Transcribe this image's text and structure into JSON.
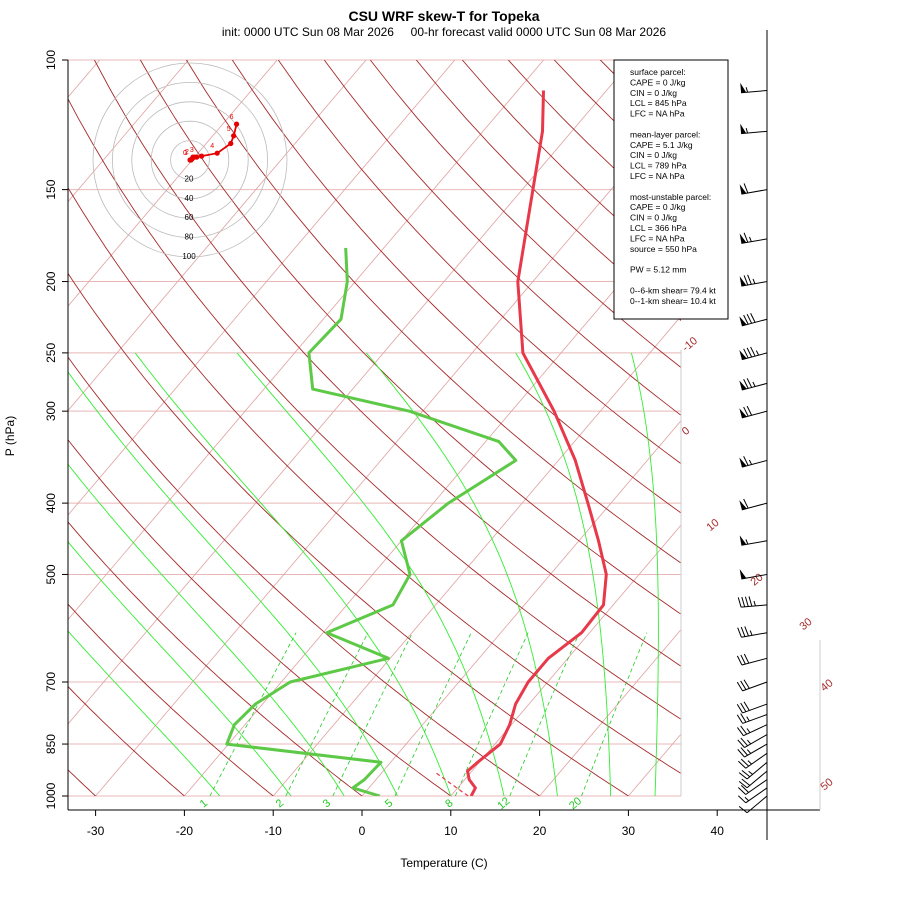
{
  "chart_data": {
    "type": "line",
    "title": "CSU WRF skew-T for Topeka",
    "subtitle": "init: 0000 UTC Sun 08 Mar 2026     00-hr forecast valid 0000 UTC Sun 08 Mar 2026",
    "xlabel": "Temperature (C)",
    "ylabel": "P (hPa)",
    "xlim_at_1000hPa": [
      -33,
      43
    ],
    "ylim_hPa": [
      100,
      1000
    ],
    "y_scale": "log",
    "x_ticks": [
      "-30",
      "-20",
      "-10",
      "0",
      "10",
      "20",
      "30",
      "40"
    ],
    "y_ticks": [
      "100",
      "150",
      "200",
      "250",
      "300",
      "400",
      "500",
      "700",
      "850",
      "1000"
    ],
    "isotherm_labels": [
      "-10",
      "0",
      "10",
      "20",
      "30",
      "40",
      "50"
    ],
    "mixing_ratio_labels": [
      "1",
      "2",
      "3",
      "5",
      "8",
      "12",
      "20"
    ],
    "series": [
      {
        "name": "",
        "color": "#e8394a",
        "values": [
          [
            1000,
            12.3
          ],
          [
            975,
            12.0
          ],
          [
            950,
            10.5
          ],
          [
            925,
            9.5
          ],
          [
            900,
            9.8
          ],
          [
            850,
            10.6
          ],
          [
            800,
            9.8
          ],
          [
            750,
            8.5
          ],
          [
            700,
            7.8
          ],
          [
            650,
            7.8
          ],
          [
            600,
            9.1
          ],
          [
            550,
            8.9
          ],
          [
            500,
            6.3
          ],
          [
            450,
            2.2
          ],
          [
            400,
            -2.6
          ],
          [
            350,
            -8.1
          ],
          [
            300,
            -15.2
          ],
          [
            250,
            -24.3
          ],
          [
            200,
            -31.7
          ],
          [
            150,
            -38.8
          ],
          [
            125,
            -43.3
          ],
          [
            110,
            -47.1
          ]
        ]
      },
      {
        "name": "",
        "color": "#5dc947",
        "values": [
          [
            1000,
            2.0
          ],
          [
            975,
            -1.8
          ],
          [
            950,
            -1.3
          ],
          [
            925,
            -1.2
          ],
          [
            900,
            -1.1
          ],
          [
            850,
            -20.2
          ],
          [
            800,
            -21.2
          ],
          [
            750,
            -20.8
          ],
          [
            700,
            -19.0
          ],
          [
            650,
            -10.2
          ],
          [
            600,
            -19.6
          ],
          [
            550,
            -14.8
          ],
          [
            500,
            -15.8
          ],
          [
            450,
            -20.0
          ],
          [
            400,
            -18.3
          ],
          [
            350,
            -14.8
          ],
          [
            330,
            -18.5
          ],
          [
            300,
            -31.5
          ],
          [
            280,
            -44.5
          ],
          [
            250,
            -48.4
          ],
          [
            225,
            -48.0
          ],
          [
            200,
            -50.9
          ],
          [
            180,
            -54.3
          ]
        ]
      }
    ],
    "hodograph": {
      "ring_labels": [
        "20",
        "40",
        "60",
        "80",
        "100"
      ],
      "height_labels": [
        "0",
        "1",
        "2",
        "3",
        "4",
        "5",
        "6"
      ],
      "points_kt": [
        [
          0,
          0
        ],
        [
          1,
          0
        ],
        [
          2,
          1
        ],
        [
          3,
          3
        ],
        [
          5,
          3
        ],
        [
          7,
          3
        ],
        [
          12,
          4
        ],
        [
          28,
          7
        ],
        [
          42,
          17
        ],
        [
          45,
          25
        ],
        [
          48,
          37
        ]
      ],
      "color": "#e60000"
    },
    "wind_barbs_kt": [
      [
        1000,
        230,
        10
      ],
      [
        975,
        235,
        15
      ],
      [
        950,
        235,
        20
      ],
      [
        925,
        230,
        20
      ],
      [
        900,
        230,
        25
      ],
      [
        875,
        235,
        25
      ],
      [
        850,
        240,
        25
      ],
      [
        825,
        240,
        25
      ],
      [
        800,
        245,
        25
      ],
      [
        775,
        250,
        25
      ],
      [
        750,
        250,
        30
      ],
      [
        700,
        250,
        30
      ],
      [
        650,
        255,
        30
      ],
      [
        600,
        260,
        35
      ],
      [
        550,
        265,
        45
      ],
      [
        500,
        260,
        50
      ],
      [
        450,
        260,
        55
      ],
      [
        400,
        255,
        60
      ],
      [
        350,
        255,
        65
      ],
      [
        300,
        255,
        70
      ],
      [
        275,
        255,
        75
      ],
      [
        250,
        255,
        85
      ],
      [
        225,
        255,
        80
      ],
      [
        200,
        260,
        75
      ],
      [
        175,
        260,
        65
      ],
      [
        150,
        260,
        60
      ],
      [
        125,
        265,
        55
      ],
      [
        110,
        265,
        55
      ]
    ],
    "grid": true,
    "legend_box_position": "top-right"
  },
  "info_box": {
    "lines": [
      "surface parcel:",
      "CAPE = 0 J/kg",
      "CIN = 0 J/kg",
      "LCL = 845 hPa",
      "LFC = NA hPa",
      "",
      "mean-layer parcel:",
      "CAPE = 5.1 J/kg",
      "CIN = 0 J/kg",
      "LCL = 789 hPa",
      "LFC = NA hPa",
      "",
      "most-unstable parcel:",
      "CAPE = 0 J/kg",
      "CIN = 0 J/kg",
      "LCL = 366 hPa",
      "LFC = NA hPa",
      "source = 550 hPa",
      "",
      "PW =  5.12 mm",
      "",
      "0--6-km shear= 79.4 kt",
      "0--1-km shear= 10.4 kt"
    ]
  },
  "colors": {
    "temperature": "#e8394a",
    "dewpoint": "#5dc947",
    "isotherm": "#e0a0a0",
    "dry_adiabat": "#a52a2a",
    "moist_adiabat": "#33ee33",
    "mixing_ratio": "#22cc22",
    "isobar": "#e8b8b8",
    "hodograph": "#e60000",
    "isotherm_label": "#a52a2a"
  }
}
